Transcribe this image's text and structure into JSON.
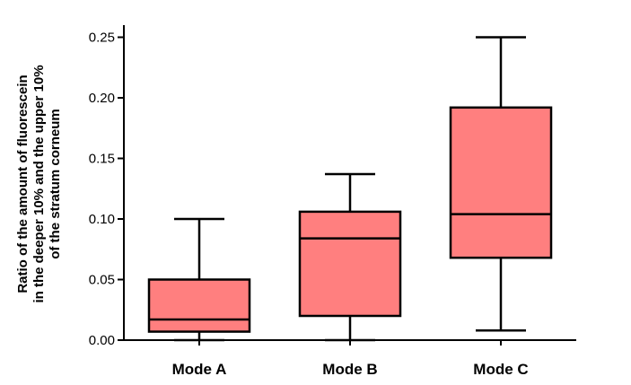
{
  "chart_data": {
    "type": "box",
    "title": "",
    "xlabel": "",
    "ylabel_lines": [
      "Ratio of the amount of fluorescein",
      "in the deeper 10% and the upper 10%",
      "of the stratum corneum"
    ],
    "ylim": [
      0,
      0.26
    ],
    "yticks": [
      0.0,
      0.05,
      0.1,
      0.15,
      0.2,
      0.25
    ],
    "ytick_labels": [
      "0.00",
      "0.05",
      "0.10",
      "0.15",
      "0.20",
      "0.25"
    ],
    "categories": [
      "Mode A",
      "Mode B",
      "Mode C"
    ],
    "boxes": [
      {
        "min": 0.0,
        "q1": 0.007,
        "median": 0.017,
        "q3": 0.05,
        "max": 0.1
      },
      {
        "min": 0.0,
        "q1": 0.02,
        "median": 0.084,
        "q3": 0.106,
        "max": 0.137
      },
      {
        "min": 0.008,
        "q1": 0.068,
        "median": 0.104,
        "q3": 0.192,
        "max": 0.25
      }
    ],
    "box_color": "#ff7f7f",
    "line_color": "#000000",
    "grid": false,
    "legend": "none"
  }
}
